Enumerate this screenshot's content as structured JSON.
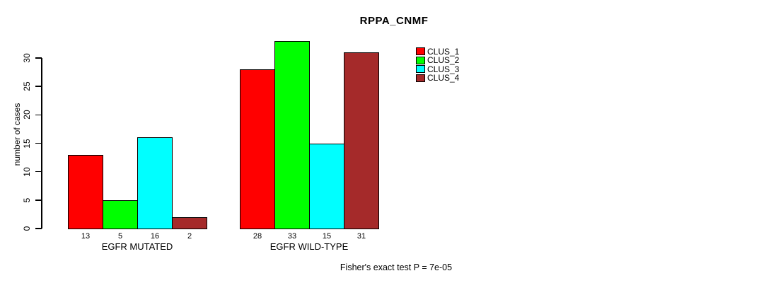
{
  "title": "RPPA_CNMF",
  "chart_data": {
    "type": "bar",
    "title": "RPPA_CNMF",
    "categories": [
      "EGFR MUTATED",
      "EGFR WILD-TYPE"
    ],
    "series": [
      {
        "name": "CLUS_1",
        "color": "#ff0000",
        "values": [
          13,
          28
        ]
      },
      {
        "name": "CLUS_2",
        "color": "#00ff00",
        "values": [
          5,
          33
        ]
      },
      {
        "name": "CLUS_3",
        "color": "#00ffff",
        "values": [
          16,
          15
        ]
      },
      {
        "name": "CLUS_4",
        "color": "#a52a2a",
        "values": [
          2,
          31
        ]
      }
    ],
    "xlabel": "",
    "ylabel": "number of cases",
    "yticks": [
      0,
      5,
      10,
      15,
      20,
      25,
      30
    ],
    "ylim": [
      0,
      33
    ],
    "grid": false,
    "legend_position": "top-right",
    "legend_entries": [
      "CLUS_1",
      "CLUS_2",
      "CLUS_3",
      "CLUS_4"
    ],
    "bar_value_labels": {
      "EGFR MUTATED": [
        13,
        5,
        16,
        2
      ],
      "EGFR WILD-TYPE": [
        28,
        33,
        15,
        31
      ]
    },
    "annotation": "Fisher's exact test P = 7e-05"
  }
}
